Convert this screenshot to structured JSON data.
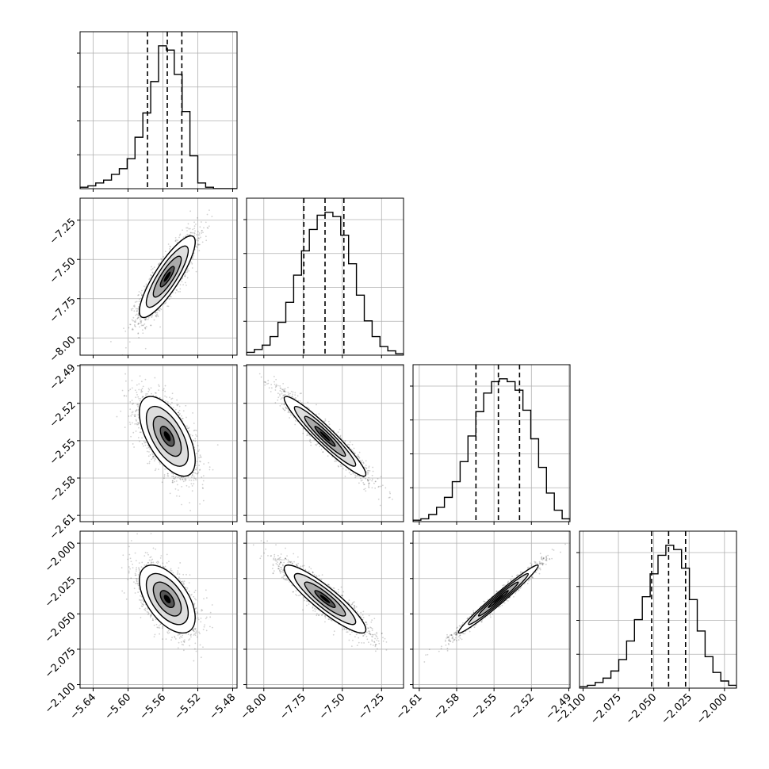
{
  "chart_data": {
    "type": "corner",
    "title": "",
    "grid": true,
    "parameters": [
      {
        "name": "",
        "range": [
          -5.655,
          -5.475
        ],
        "median": -5.555,
        "quantiles": [
          -5.5777,
          -5.555,
          -5.5383
        ],
        "ticks": [
          "-5.64",
          "-5.60",
          "-5.56",
          "-5.52",
          "-5.48"
        ],
        "tick_values": [
          -5.64,
          -5.6,
          -5.56,
          -5.52,
          -5.48
        ]
      },
      {
        "name": "",
        "range": [
          -8.11,
          -7.11
        ],
        "median": -7.61,
        "quantiles": [
          -7.745,
          -7.61,
          -7.49
        ],
        "ticks": [
          "-8.00",
          "-7.75",
          "-7.50",
          "-7.25"
        ],
        "tick_values": [
          -8.0,
          -7.75,
          -7.5,
          -7.25
        ]
      },
      {
        "name": "",
        "range": [
          -2.615,
          -2.489
        ],
        "median": -2.5465,
        "quantiles": [
          -2.5645,
          -2.5465,
          -2.5295
        ],
        "ticks": [
          "-2.61",
          "-2.58",
          "-2.55",
          "-2.52",
          "-2.49"
        ],
        "tick_values": [
          -2.61,
          -2.58,
          -2.55,
          -2.52,
          -2.49
        ]
      },
      {
        "name": "",
        "range": [
          -2.1025,
          -1.9915
        ],
        "median": -2.0395,
        "quantiles": [
          -2.0515,
          -2.0395,
          -2.0275
        ],
        "ticks": [
          "-2.100",
          "-2.075",
          "-2.050",
          "-2.025",
          "-2.000"
        ],
        "tick_values": [
          -2.1,
          -2.075,
          -2.05,
          -2.025,
          -2.0
        ]
      }
    ],
    "histograms": [
      [
        0.01,
        0.02,
        0.04,
        0.06,
        0.1,
        0.14,
        0.21,
        0.36,
        0.53,
        0.75,
        1.0,
        0.97,
        0.8,
        0.54,
        0.23,
        0.04,
        0.01,
        0,
        0,
        0
      ],
      [
        0.02,
        0.04,
        0.07,
        0.13,
        0.23,
        0.37,
        0.56,
        0.73,
        0.88,
        0.98,
        1.0,
        0.97,
        0.84,
        0.64,
        0.42,
        0.24,
        0.13,
        0.06,
        0.03,
        0.01
      ],
      [
        0.01,
        0.02,
        0.05,
        0.1,
        0.17,
        0.28,
        0.42,
        0.6,
        0.77,
        0.9,
        0.98,
        1.0,
        0.98,
        0.92,
        0.78,
        0.58,
        0.38,
        0.2,
        0.08,
        0.02
      ],
      [
        0.01,
        0.02,
        0.04,
        0.07,
        0.12,
        0.2,
        0.33,
        0.48,
        0.64,
        0.8,
        0.93,
        1.0,
        0.97,
        0.84,
        0.62,
        0.4,
        0.22,
        0.11,
        0.05,
        0.02
      ]
    ],
    "correlations": [
      [
        1.0,
        0.85,
        -0.6,
        -0.55
      ],
      [
        0.85,
        1.0,
        -0.95,
        -0.9
      ],
      [
        -0.6,
        -0.95,
        1.0,
        0.98
      ],
      [
        -0.55,
        -0.9,
        0.98,
        1.0
      ]
    ],
    "std": [
      0.016,
      0.13,
      0.016,
      0.012
    ],
    "contour_levels_sigma": [
      0.5,
      1.0,
      1.5,
      2.0
    ],
    "colors": {
      "line": "#000000",
      "grid": "#b0b0b0",
      "scatter": "#000000",
      "background": "#ffffff"
    }
  }
}
